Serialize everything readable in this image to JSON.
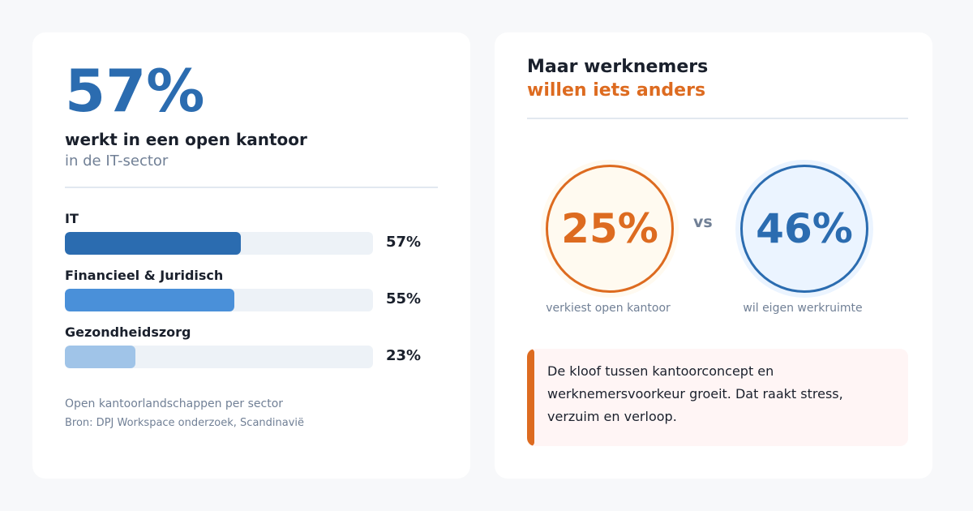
{
  "left": {
    "headline": "57%",
    "subtitle": "werkt in een open kantoor",
    "subtitle2": "in de IT-sector",
    "bars": [
      {
        "label": "IT",
        "value": 57,
        "display": "57%",
        "color": "#2b6cb0"
      },
      {
        "label": "Financieel & Juridisch",
        "value": 55,
        "display": "55%",
        "color": "#4a90d9"
      },
      {
        "label": "Gezondheidszorg",
        "value": 23,
        "display": "23%",
        "color": "#a0c4e8"
      }
    ],
    "caption": "Open kantoorlandschappen per sector",
    "source": "Bron: DPJ Workspace onderzoek, Scandinavië"
  },
  "right": {
    "title_line1": "Maar werknemers",
    "title_line2": "willen iets anders",
    "stat1": {
      "value": "25%",
      "label": "verkiest open kantoor"
    },
    "vs": "vs",
    "stat2": {
      "value": "46%",
      "label": "wil eigen werkruimte"
    },
    "callout": "De kloof tussen kantoorconcept en werknemersvoorkeur groeit. Dat raakt stress, verzuim en verloop."
  }
}
